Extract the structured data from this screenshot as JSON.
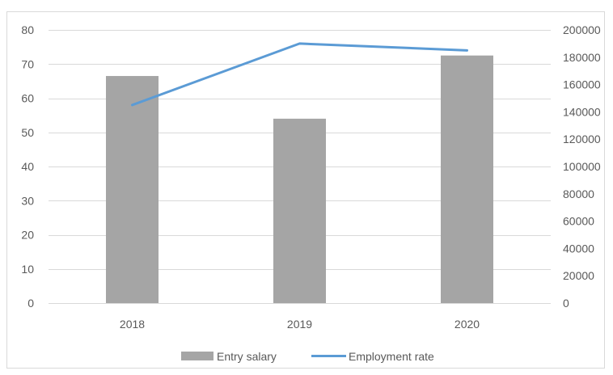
{
  "chart_data": {
    "type": "bar+line",
    "categories": [
      "2018",
      "2019",
      "2020"
    ],
    "series": [
      {
        "name": "Entry salary",
        "type": "bar",
        "axis": "left",
        "values": [
          66.5,
          54,
          72.5
        ],
        "color": "#a5a5a5"
      },
      {
        "name": "Employment rate",
        "type": "line",
        "axis": "right",
        "values": [
          145000,
          190000,
          185000
        ],
        "color": "#5b9bd5"
      }
    ],
    "y_left": {
      "range": [
        0,
        80
      ],
      "ticks": [
        "0",
        "10",
        "20",
        "30",
        "40",
        "50",
        "60",
        "70",
        "80"
      ]
    },
    "y_right": {
      "range": [
        0,
        200000
      ],
      "ticks": [
        "0",
        "20000",
        "40000",
        "60000",
        "80000",
        "100000",
        "120000",
        "140000",
        "160000",
        "180000",
        "200000"
      ]
    },
    "grid": true,
    "legend_position": "bottom",
    "gridline_color": "#d9d9d9"
  }
}
